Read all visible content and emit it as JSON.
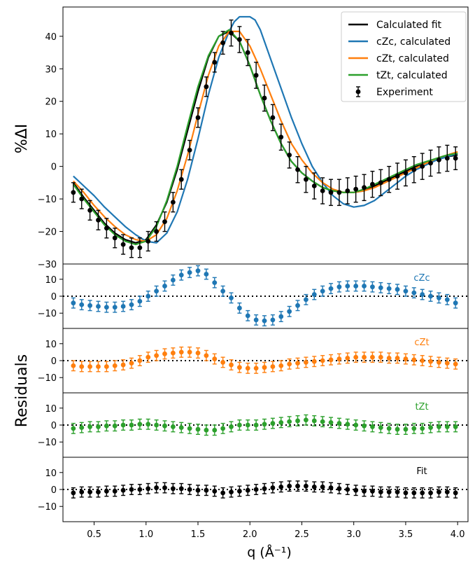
{
  "chart_data": {
    "type": "line",
    "xlabel": "q (Å⁻¹)",
    "xlim": [
      0.2,
      4.1
    ],
    "xticks": [
      0.5,
      1.0,
      1.5,
      2.0,
      2.5,
      3.0,
      3.5,
      4.0
    ],
    "xtick_labels": [
      "0.5",
      "1.0",
      "1.5",
      "2.0",
      "2.5",
      "3.0",
      "3.5",
      "4.0"
    ],
    "main": {
      "ylabel": "%ΔI",
      "ylim": [
        -30,
        49
      ],
      "yticks": [
        -30,
        -20,
        -10,
        0,
        10,
        20,
        30,
        40
      ],
      "ytick_labels": [
        "−30",
        "−20",
        "−10",
        "0",
        "10",
        "20",
        "30",
        "40"
      ],
      "series": [
        {
          "name": "Calculated fit",
          "color": "#000000",
          "x": [
            0.3,
            0.4,
            0.5,
            0.6,
            0.7,
            0.8,
            0.9,
            1.0,
            1.1,
            1.2,
            1.3,
            1.4,
            1.5,
            1.6,
            1.7,
            1.8,
            1.9,
            2.0,
            2.1,
            2.2,
            2.3,
            2.4,
            2.5,
            2.6,
            2.7,
            2.8,
            2.9,
            3.0,
            3.1,
            3.2,
            3.3,
            3.4,
            3.5,
            3.6,
            3.7,
            3.8,
            3.9,
            4.0
          ],
          "y": [
            -5,
            -9.5,
            -13.5,
            -17.5,
            -20.5,
            -22.5,
            -23.5,
            -22.5,
            -18,
            -11,
            -1,
            11,
            23,
            33.5,
            40,
            41.5,
            38.5,
            31,
            22,
            14,
            7,
            1.5,
            -2,
            -4.5,
            -6.5,
            -7.5,
            -8,
            -8,
            -7.5,
            -6,
            -4.5,
            -3,
            -1.5,
            0,
            1,
            2,
            3,
            3.5
          ]
        },
        {
          "name": "cZc, calculated",
          "color": "#1f77b4",
          "x": [
            0.3,
            0.4,
            0.5,
            0.6,
            0.7,
            0.8,
            0.9,
            1.0,
            1.1,
            1.2,
            1.3,
            1.4,
            1.5,
            1.6,
            1.7,
            1.8,
            1.85,
            1.9,
            1.95,
            2.0,
            2.05,
            2.1,
            2.2,
            2.3,
            2.4,
            2.5,
            2.6,
            2.7,
            2.8,
            2.9,
            3.0,
            3.1,
            3.2,
            3.3,
            3.4,
            3.5,
            3.6,
            3.7,
            3.8,
            3.9,
            4.0
          ],
          "y": [
            -3,
            -6,
            -9,
            -12.5,
            -15.5,
            -18.5,
            -21,
            -23,
            -23.5,
            -20.5,
            -14,
            -4,
            8.5,
            22,
            33.5,
            41.5,
            44.5,
            46,
            46,
            46,
            45,
            42,
            33,
            24,
            15,
            7,
            0,
            -5,
            -9,
            -11.5,
            -12.5,
            -12,
            -10.5,
            -8,
            -5.5,
            -3,
            -1,
            0.5,
            2,
            3,
            4
          ]
        },
        {
          "name": "cZt, calculated",
          "color": "#ff7f0e",
          "x": [
            0.3,
            0.4,
            0.5,
            0.6,
            0.7,
            0.8,
            0.9,
            1.0,
            1.1,
            1.2,
            1.3,
            1.4,
            1.5,
            1.6,
            1.7,
            1.8,
            1.9,
            2.0,
            2.1,
            2.2,
            2.3,
            2.4,
            2.5,
            2.6,
            2.7,
            2.8,
            2.9,
            3.0,
            3.1,
            3.2,
            3.3,
            3.4,
            3.5,
            3.6,
            3.7,
            3.8,
            3.9,
            4.0
          ],
          "y": [
            -4.5,
            -8,
            -12,
            -15.5,
            -18.5,
            -21,
            -22.5,
            -23,
            -21,
            -16,
            -7.5,
            3.5,
            16,
            28,
            37,
            41.5,
            41.5,
            37,
            30,
            22,
            14,
            7,
            2,
            -2,
            -5,
            -7,
            -8,
            -8,
            -7.5,
            -6.5,
            -5,
            -3.5,
            -2,
            -0.5,
            1,
            2.5,
            3.5,
            4.5
          ]
        },
        {
          "name": "tZt, calculated",
          "color": "#2ca02c",
          "x": [
            0.3,
            0.4,
            0.5,
            0.6,
            0.7,
            0.8,
            0.9,
            1.0,
            1.1,
            1.2,
            1.3,
            1.4,
            1.5,
            1.6,
            1.7,
            1.8,
            1.9,
            2.0,
            2.1,
            2.2,
            2.3,
            2.4,
            2.5,
            2.6,
            2.7,
            2.8,
            2.9,
            3.0,
            3.1,
            3.2,
            3.3,
            3.4,
            3.5,
            3.6,
            3.7,
            3.8,
            3.9,
            4.0
          ],
          "y": [
            -5.5,
            -10,
            -14,
            -18,
            -21,
            -23,
            -24,
            -23,
            -18.5,
            -10.5,
            0,
            12.5,
            24.5,
            34,
            40,
            42,
            38.5,
            31,
            22,
            14,
            7,
            1.5,
            -2,
            -4.5,
            -6.5,
            -7.5,
            -8,
            -8,
            -7,
            -5.5,
            -4,
            -2.5,
            -1,
            0.5,
            1.5,
            2.5,
            3.5,
            4
          ]
        },
        {
          "name": "Experiment",
          "color": "#000000",
          "style": "errorbar",
          "x": [
            0.3,
            0.38,
            0.46,
            0.54,
            0.62,
            0.7,
            0.78,
            0.86,
            0.94,
            1.02,
            1.1,
            1.18,
            1.26,
            1.34,
            1.42,
            1.5,
            1.58,
            1.66,
            1.74,
            1.82,
            1.9,
            1.98,
            2.06,
            2.14,
            2.22,
            2.3,
            2.38,
            2.46,
            2.54,
            2.62,
            2.7,
            2.78,
            2.86,
            2.94,
            3.02,
            3.1,
            3.18,
            3.26,
            3.34,
            3.42,
            3.5,
            3.58,
            3.66,
            3.74,
            3.82,
            3.9,
            3.98
          ],
          "y": [
            -8,
            -10,
            -13.5,
            -16.5,
            -19,
            -22,
            -24,
            -25,
            -25,
            -23,
            -20,
            -17,
            -11,
            -4,
            5,
            15,
            24.5,
            32,
            38,
            41,
            39,
            35,
            28,
            21,
            15,
            9,
            3.5,
            -1,
            -4,
            -6,
            -7.5,
            -8,
            -8,
            -7.5,
            -7,
            -6.5,
            -5.5,
            -5,
            -4,
            -3,
            -2,
            -1,
            0,
            1,
            2,
            2.5,
            2.5
          ],
          "err": [
            3,
            3,
            3,
            3,
            3,
            3,
            3,
            3,
            3,
            3,
            3,
            3,
            3,
            3,
            3,
            3,
            3,
            3,
            3.5,
            4,
            4,
            4,
            4,
            4,
            4,
            4,
            4,
            4,
            4,
            4,
            4,
            4,
            4,
            4,
            4,
            4,
            4,
            4,
            4,
            4,
            4,
            4,
            4,
            4,
            4,
            4,
            3.5
          ]
        }
      ],
      "legend": {
        "placement": "top-right",
        "entries": [
          {
            "label": "Calculated fit",
            "color": "#000000",
            "marker": "line"
          },
          {
            "label": "cZc, calculated",
            "color": "#1f77b4",
            "marker": "line"
          },
          {
            "label": "cZt, calculated",
            "color": "#ff7f0e",
            "marker": "line"
          },
          {
            "label": "tZt, calculated",
            "color": "#2ca02c",
            "marker": "line"
          },
          {
            "label": "Experiment",
            "color": "#000000",
            "marker": "errorbar"
          }
        ]
      }
    },
    "residuals": {
      "ylabel": "Residuals",
      "ylim": [
        -19,
        19
      ],
      "yticks": [
        -10,
        0,
        10
      ],
      "ytick_labels": [
        "−10",
        "0",
        "10"
      ],
      "x": [
        0.3,
        0.38,
        0.46,
        0.54,
        0.62,
        0.7,
        0.78,
        0.86,
        0.94,
        1.02,
        1.1,
        1.18,
        1.26,
        1.34,
        1.42,
        1.5,
        1.58,
        1.66,
        1.74,
        1.82,
        1.9,
        1.98,
        2.06,
        2.14,
        2.22,
        2.3,
        2.38,
        2.46,
        2.54,
        2.62,
        2.7,
        2.78,
        2.86,
        2.94,
        3.02,
        3.1,
        3.18,
        3.26,
        3.34,
        3.42,
        3.5,
        3.58,
        3.66,
        3.74,
        3.82,
        3.9,
        3.98
      ],
      "err": 3,
      "panels": [
        {
          "label": "cZc",
          "color": "#1f77b4",
          "values": [
            -4,
            -5,
            -5.5,
            -6,
            -6.5,
            -6.5,
            -6,
            -5,
            -3,
            0,
            3,
            6,
            9.5,
            12.5,
            14,
            15,
            13,
            8,
            3,
            -1,
            -7,
            -11.5,
            -14,
            -14.5,
            -14,
            -12,
            -9,
            -5.5,
            -2,
            1,
            3,
            4.5,
            5.5,
            6,
            6,
            6,
            5.5,
            5,
            4.5,
            4,
            3,
            2,
            1,
            0,
            -1,
            -2,
            -4
          ]
        },
        {
          "label": "cZt",
          "color": "#ff7f0e",
          "values": [
            -3,
            -3.5,
            -3.5,
            -3.5,
            -3.5,
            -3,
            -2.5,
            -1.5,
            0,
            2,
            3,
            4,
            4.5,
            5,
            5,
            4.5,
            3,
            1,
            -1,
            -2.5,
            -4,
            -4.5,
            -4.5,
            -4,
            -3.5,
            -3,
            -2,
            -1.5,
            -1,
            -0.5,
            0,
            0.5,
            1,
            1.5,
            2,
            2,
            2,
            2,
            1.5,
            1.5,
            1,
            0.5,
            0,
            -0.5,
            -1,
            -1.5,
            -2
          ]
        },
        {
          "label": "tZt",
          "color": "#2ca02c",
          "values": [
            -2,
            -1.5,
            -1,
            -1,
            -0.5,
            -0.5,
            0,
            0,
            0.5,
            0.5,
            0,
            -0.5,
            -1,
            -1.5,
            -2,
            -2.5,
            -3,
            -3,
            -2,
            -1,
            0,
            0,
            0,
            0.5,
            1,
            1.5,
            2,
            2.5,
            3,
            2.5,
            2,
            1.5,
            1,
            0.5,
            0,
            -0.5,
            -1,
            -1.5,
            -2,
            -2.5,
            -2.5,
            -2,
            -2,
            -1.5,
            -1,
            -1,
            -1
          ]
        },
        {
          "label": "Fit",
          "color": "#000000",
          "values": [
            -2,
            -1.5,
            -1.5,
            -1.5,
            -1,
            -1,
            -0.5,
            0,
            0,
            0.5,
            1,
            1,
            0.5,
            0.5,
            0,
            -0.5,
            -0.5,
            -1,
            -2,
            -1.5,
            -1,
            -0.5,
            0,
            0.5,
            1,
            1.5,
            2,
            2,
            2,
            1.5,
            1.5,
            1,
            0.5,
            0,
            -0.5,
            -1,
            -1,
            -1.5,
            -1.5,
            -1.5,
            -2,
            -2,
            -2,
            -2,
            -1.5,
            -1.5,
            -2
          ]
        }
      ]
    }
  }
}
